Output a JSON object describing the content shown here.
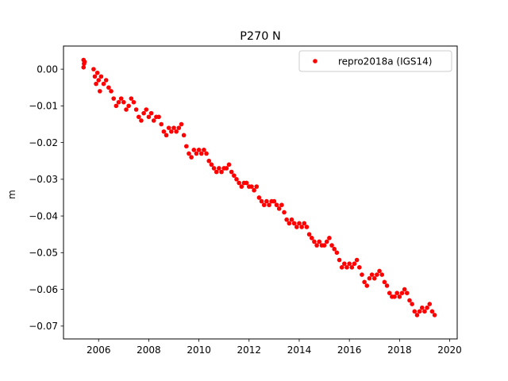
{
  "chart_data": {
    "type": "scatter",
    "title": "P270 N",
    "xlabel": "",
    "ylabel": "m",
    "xlim": [
      2004.6,
      2020.3
    ],
    "ylim": [
      -0.0735,
      0.0063
    ],
    "grid": false,
    "legend_position": "top-right",
    "x_ticks": [
      2006,
      2008,
      2010,
      2012,
      2014,
      2016,
      2018,
      2020
    ],
    "x_tick_labels": [
      "2006",
      "2008",
      "2010",
      "2012",
      "2014",
      "2016",
      "2018",
      "2020"
    ],
    "y_ticks": [
      0.0,
      -0.01,
      -0.02,
      -0.03,
      -0.04,
      -0.05,
      -0.06,
      -0.07
    ],
    "y_tick_labels": [
      "0.00",
      "−0.01",
      "−0.02",
      "−0.03",
      "−0.04",
      "−0.05",
      "−0.06",
      "−0.07"
    ],
    "series": [
      {
        "name": "repro2018a (IGS14)",
        "color": "#ff0000",
        "marker": "circle",
        "points": [
          [
            2005.4,
            0.0025
          ],
          [
            2005.4,
            0.0005
          ],
          [
            2005.42,
            0.0015
          ],
          [
            2005.44,
            0.002
          ],
          [
            2005.8,
            0.0
          ],
          [
            2005.85,
            -0.002
          ],
          [
            2005.9,
            -0.004
          ],
          [
            2005.95,
            -0.001
          ],
          [
            2006.0,
            -0.003
          ],
          [
            2006.05,
            -0.006
          ],
          [
            2006.1,
            -0.002
          ],
          [
            2006.2,
            -0.004
          ],
          [
            2006.3,
            -0.003
          ],
          [
            2006.4,
            -0.005
          ],
          [
            2006.5,
            -0.006
          ],
          [
            2006.6,
            -0.008
          ],
          [
            2006.7,
            -0.01
          ],
          [
            2006.8,
            -0.009
          ],
          [
            2006.9,
            -0.008
          ],
          [
            2007.0,
            -0.009
          ],
          [
            2007.1,
            -0.011
          ],
          [
            2007.2,
            -0.01
          ],
          [
            2007.3,
            -0.008
          ],
          [
            2007.4,
            -0.009
          ],
          [
            2007.5,
            -0.011
          ],
          [
            2007.6,
            -0.013
          ],
          [
            2007.7,
            -0.014
          ],
          [
            2007.8,
            -0.012
          ],
          [
            2007.9,
            -0.011
          ],
          [
            2008.0,
            -0.013
          ],
          [
            2008.1,
            -0.012
          ],
          [
            2008.2,
            -0.014
          ],
          [
            2008.3,
            -0.013
          ],
          [
            2008.4,
            -0.013
          ],
          [
            2008.5,
            -0.015
          ],
          [
            2008.6,
            -0.017
          ],
          [
            2008.7,
            -0.018
          ],
          [
            2008.8,
            -0.016
          ],
          [
            2008.9,
            -0.017
          ],
          [
            2009.0,
            -0.016
          ],
          [
            2009.1,
            -0.017
          ],
          [
            2009.2,
            -0.016
          ],
          [
            2009.3,
            -0.015
          ],
          [
            2009.4,
            -0.018
          ],
          [
            2009.5,
            -0.021
          ],
          [
            2009.6,
            -0.023
          ],
          [
            2009.7,
            -0.024
          ],
          [
            2009.8,
            -0.022
          ],
          [
            2009.9,
            -0.023
          ],
          [
            2010.0,
            -0.022
          ],
          [
            2010.1,
            -0.023
          ],
          [
            2010.2,
            -0.022
          ],
          [
            2010.3,
            -0.023
          ],
          [
            2010.4,
            -0.025
          ],
          [
            2010.5,
            -0.026
          ],
          [
            2010.6,
            -0.027
          ],
          [
            2010.7,
            -0.028
          ],
          [
            2010.8,
            -0.027
          ],
          [
            2010.9,
            -0.028
          ],
          [
            2011.0,
            -0.027
          ],
          [
            2011.1,
            -0.027
          ],
          [
            2011.2,
            -0.026
          ],
          [
            2011.3,
            -0.028
          ],
          [
            2011.4,
            -0.029
          ],
          [
            2011.5,
            -0.03
          ],
          [
            2011.6,
            -0.031
          ],
          [
            2011.7,
            -0.032
          ],
          [
            2011.8,
            -0.031
          ],
          [
            2011.9,
            -0.031
          ],
          [
            2012.0,
            -0.032
          ],
          [
            2012.1,
            -0.032
          ],
          [
            2012.2,
            -0.033
          ],
          [
            2012.3,
            -0.032
          ],
          [
            2012.4,
            -0.035
          ],
          [
            2012.5,
            -0.036
          ],
          [
            2012.6,
            -0.037
          ],
          [
            2012.7,
            -0.036
          ],
          [
            2012.8,
            -0.037
          ],
          [
            2012.9,
            -0.036
          ],
          [
            2013.0,
            -0.036
          ],
          [
            2013.1,
            -0.037
          ],
          [
            2013.2,
            -0.038
          ],
          [
            2013.3,
            -0.037
          ],
          [
            2013.4,
            -0.039
          ],
          [
            2013.5,
            -0.041
          ],
          [
            2013.6,
            -0.042
          ],
          [
            2013.7,
            -0.041
          ],
          [
            2013.8,
            -0.042
          ],
          [
            2013.9,
            -0.043
          ],
          [
            2014.0,
            -0.042
          ],
          [
            2014.1,
            -0.043
          ],
          [
            2014.2,
            -0.042
          ],
          [
            2014.3,
            -0.043
          ],
          [
            2014.4,
            -0.045
          ],
          [
            2014.5,
            -0.046
          ],
          [
            2014.6,
            -0.047
          ],
          [
            2014.7,
            -0.048
          ],
          [
            2014.8,
            -0.047
          ],
          [
            2014.9,
            -0.048
          ],
          [
            2015.0,
            -0.048
          ],
          [
            2015.1,
            -0.047
          ],
          [
            2015.2,
            -0.046
          ],
          [
            2015.3,
            -0.048
          ],
          [
            2015.4,
            -0.049
          ],
          [
            2015.5,
            -0.05
          ],
          [
            2015.6,
            -0.052
          ],
          [
            2015.7,
            -0.054
          ],
          [
            2015.8,
            -0.053
          ],
          [
            2015.9,
            -0.054
          ],
          [
            2016.0,
            -0.053
          ],
          [
            2016.1,
            -0.054
          ],
          [
            2016.2,
            -0.053
          ],
          [
            2016.3,
            -0.052
          ],
          [
            2016.4,
            -0.054
          ],
          [
            2016.5,
            -0.056
          ],
          [
            2016.6,
            -0.058
          ],
          [
            2016.7,
            -0.059
          ],
          [
            2016.8,
            -0.057
          ],
          [
            2016.9,
            -0.056
          ],
          [
            2017.0,
            -0.057
          ],
          [
            2017.1,
            -0.056
          ],
          [
            2017.2,
            -0.055
          ],
          [
            2017.3,
            -0.056
          ],
          [
            2017.4,
            -0.058
          ],
          [
            2017.5,
            -0.059
          ],
          [
            2017.6,
            -0.061
          ],
          [
            2017.7,
            -0.062
          ],
          [
            2017.8,
            -0.062
          ],
          [
            2017.9,
            -0.061
          ],
          [
            2018.0,
            -0.062
          ],
          [
            2018.1,
            -0.061
          ],
          [
            2018.2,
            -0.06
          ],
          [
            2018.3,
            -0.061
          ],
          [
            2018.4,
            -0.063
          ],
          [
            2018.5,
            -0.064
          ],
          [
            2018.6,
            -0.066
          ],
          [
            2018.7,
            -0.067
          ],
          [
            2018.8,
            -0.066
          ],
          [
            2018.9,
            -0.065
          ],
          [
            2019.0,
            -0.066
          ],
          [
            2019.1,
            -0.065
          ],
          [
            2019.2,
            -0.064
          ],
          [
            2019.3,
            -0.066
          ],
          [
            2019.4,
            -0.067
          ]
        ]
      }
    ]
  }
}
